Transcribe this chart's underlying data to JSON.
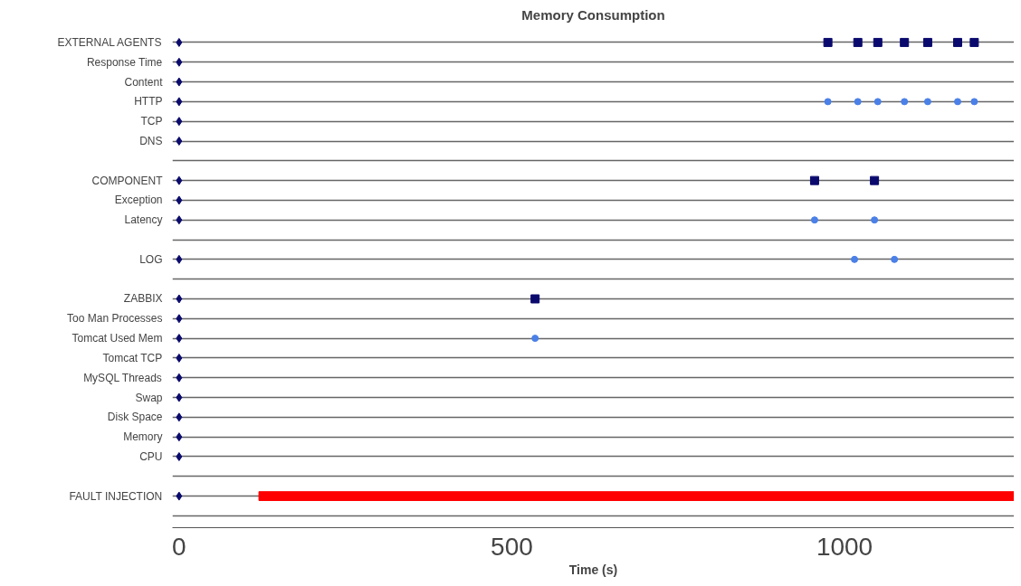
{
  "chart_data": {
    "type": "scatter",
    "title": "Memory Consumption",
    "xlabel": "Time (s)",
    "orientation": "horizontal",
    "categories": [
      "EXTERNAL AGENTS",
      "Response Time",
      "Content",
      "HTTP",
      "TCP",
      "DNS",
      null,
      "COMPONENT",
      "Exception",
      "Latency",
      null,
      "LOG",
      null,
      "ZABBIX",
      "Too Man Processes",
      "Tomcat Used Mem",
      "Tomcat TCP",
      "MySQL Threads",
      "Swap",
      "Disk Space",
      "Memory",
      "CPU",
      null,
      "FAULT INJECTION",
      null
    ],
    "xlim": [
      -10,
      1255
    ],
    "xticks": [
      0,
      500,
      1000
    ],
    "grid": "y",
    "series": [
      {
        "type": "scatter",
        "marker": "diamond",
        "color": "#0a0a6e",
        "values": [
          0,
          0,
          0,
          0,
          0,
          0,
          null,
          0,
          0,
          0,
          null,
          0,
          null,
          0,
          0,
          0,
          0,
          0,
          0,
          0,
          0,
          0,
          null,
          0,
          null
        ]
      },
      {
        "type": "bar",
        "color": "#ff0000",
        "base": [
          null,
          null,
          null,
          null,
          null,
          null,
          null,
          null,
          null,
          null,
          null,
          null,
          null,
          null,
          null,
          null,
          null,
          null,
          null,
          null,
          null,
          null,
          null,
          120,
          null
        ],
        "values": [
          null,
          null,
          null,
          null,
          null,
          null,
          null,
          null,
          null,
          null,
          null,
          null,
          null,
          null,
          null,
          null,
          null,
          null,
          null,
          null,
          null,
          null,
          null,
          1135,
          null
        ]
      },
      {
        "type": "scatter",
        "marker": "square",
        "color": "#0a0a6e",
        "values": [
          975,
          null,
          null,
          null,
          null,
          null,
          null,
          955,
          null,
          null,
          null,
          null,
          null,
          535,
          null,
          null,
          null,
          null,
          null,
          null,
          null,
          null,
          null,
          null,
          null
        ]
      },
      {
        "type": "scatter",
        "marker": "square",
        "color": "#0a0a6e",
        "values": [
          1020,
          null,
          null,
          null,
          null,
          null,
          null,
          1045,
          null,
          null,
          null,
          null,
          null,
          null,
          null,
          null,
          null,
          null,
          null,
          null,
          null,
          null,
          null,
          null,
          null
        ]
      },
      {
        "type": "scatter",
        "marker": "square",
        "color": "#0a0a6e",
        "values": [
          1050,
          null,
          null,
          null,
          null,
          null,
          null,
          null,
          null,
          null,
          null,
          null,
          null,
          null,
          null,
          null,
          null,
          null,
          null,
          null,
          null,
          null,
          null,
          null,
          null
        ]
      },
      {
        "type": "scatter",
        "marker": "square",
        "color": "#0a0a6e",
        "values": [
          1090,
          null,
          null,
          null,
          null,
          null,
          null,
          null,
          null,
          null,
          null,
          null,
          null,
          null,
          null,
          null,
          null,
          null,
          null,
          null,
          null,
          null,
          null,
          null,
          null
        ]
      },
      {
        "type": "scatter",
        "marker": "square",
        "color": "#0a0a6e",
        "values": [
          1125,
          null,
          null,
          null,
          null,
          null,
          null,
          null,
          null,
          null,
          null,
          null,
          null,
          null,
          null,
          null,
          null,
          null,
          null,
          null,
          null,
          null,
          null,
          null,
          null
        ]
      },
      {
        "type": "scatter",
        "marker": "square",
        "color": "#0a0a6e",
        "values": [
          1170,
          null,
          null,
          null,
          null,
          null,
          null,
          null,
          null,
          null,
          null,
          null,
          null,
          null,
          null,
          null,
          null,
          null,
          null,
          null,
          null,
          null,
          null,
          null,
          null
        ]
      },
      {
        "type": "scatter",
        "marker": "square",
        "color": "#0a0a6e",
        "values": [
          1195,
          null,
          null,
          null,
          null,
          null,
          null,
          null,
          null,
          null,
          null,
          null,
          null,
          null,
          null,
          null,
          null,
          null,
          null,
          null,
          null,
          null,
          null,
          null,
          null
        ]
      },
      {
        "type": "scatter",
        "marker": "circle",
        "color": "#4a80e8",
        "values": [
          null,
          null,
          null,
          975,
          null,
          null,
          null,
          null,
          null,
          955,
          null,
          1015,
          null,
          null,
          null,
          535,
          null,
          null,
          null,
          null,
          null,
          null,
          null,
          null,
          null
        ]
      },
      {
        "type": "scatter",
        "marker": "circle",
        "color": "#4a80e8",
        "values": [
          null,
          null,
          null,
          1020,
          null,
          null,
          null,
          null,
          null,
          1045,
          null,
          1075,
          null,
          null,
          null,
          null,
          null,
          null,
          null,
          null,
          null,
          null,
          null,
          null,
          null
        ]
      },
      {
        "type": "scatter",
        "marker": "circle",
        "color": "#4a80e8",
        "values": [
          null,
          null,
          null,
          1050,
          null,
          null,
          null,
          null,
          null,
          null,
          null,
          null,
          null,
          null,
          null,
          null,
          null,
          null,
          null,
          null,
          null,
          null,
          null,
          null,
          null
        ]
      },
      {
        "type": "scatter",
        "marker": "circle",
        "color": "#4a80e8",
        "values": [
          null,
          null,
          null,
          1090,
          null,
          null,
          null,
          null,
          null,
          null,
          null,
          null,
          null,
          null,
          null,
          null,
          null,
          null,
          null,
          null,
          null,
          null,
          null,
          null,
          null
        ]
      },
      {
        "type": "scatter",
        "marker": "circle",
        "color": "#4a80e8",
        "values": [
          null,
          null,
          null,
          1125,
          null,
          null,
          null,
          null,
          null,
          null,
          null,
          null,
          null,
          null,
          null,
          null,
          null,
          null,
          null,
          null,
          null,
          null,
          null,
          null,
          null
        ]
      },
      {
        "type": "scatter",
        "marker": "circle",
        "color": "#4a80e8",
        "values": [
          null,
          null,
          null,
          1170,
          null,
          null,
          null,
          null,
          null,
          null,
          null,
          null,
          null,
          null,
          null,
          null,
          null,
          null,
          null,
          null,
          null,
          null,
          null,
          null,
          null
        ]
      },
      {
        "type": "scatter",
        "marker": "circle",
        "color": "#4a80e8",
        "values": [
          null,
          null,
          null,
          1195,
          null,
          null,
          null,
          null,
          null,
          null,
          null,
          null,
          null,
          null,
          null,
          null,
          null,
          null,
          null,
          null,
          null,
          null,
          null,
          null,
          null
        ]
      }
    ]
  }
}
